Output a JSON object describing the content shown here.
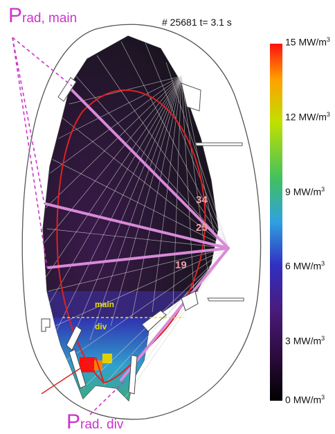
{
  "annotations": {
    "prad_main": {
      "big": "P",
      "sub": "rad, main"
    },
    "prad_div": {
      "big": "P",
      "sub": "rad. div"
    },
    "shot_title": "# 25681 t= 3.1 s",
    "region_main": "main",
    "region_div": "div",
    "channels": [
      "34",
      "25",
      "19"
    ]
  },
  "colorbar": {
    "unit": "MW/m",
    "unit_exponent": "3",
    "tick_values": [
      "15",
      "12",
      "9",
      "6",
      "3",
      "0"
    ],
    "range": [
      0,
      15
    ],
    "colors": [
      "#000000",
      "#4a1a6a",
      "#3030c0",
      "#30a0e0",
      "#40c060",
      "#c0e000",
      "#ffa000",
      "#ff1010"
    ]
  },
  "colors": {
    "annotation": "#cc33cc",
    "separatrix": "#dd2222",
    "region_line": "#e8e000",
    "channel_text": "#f0a0a8"
  }
}
